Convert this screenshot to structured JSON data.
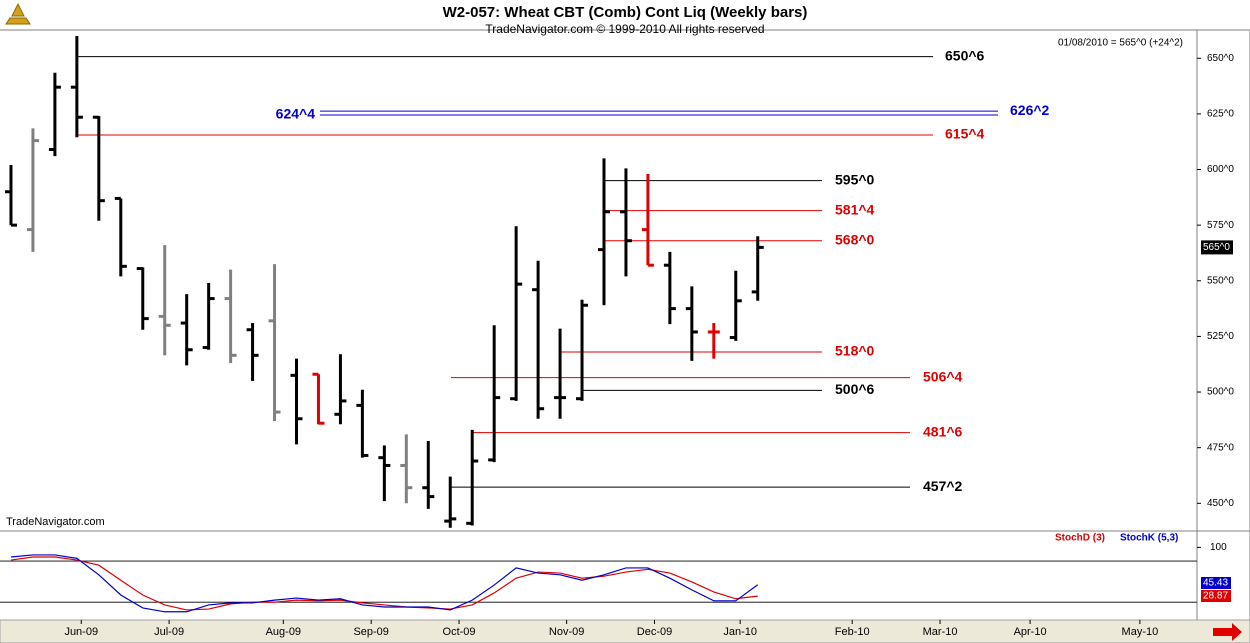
{
  "title": "W2-057:  Wheat CBT (Comb) Cont Liq  (Weekly bars)",
  "subtitle": "TradeNavigator.com © 1999-2010 All rights reserved",
  "info": "01/08/2010 = 565^0 (+24^2)",
  "watermark": "TradeNavigator.com",
  "chart_data": [
    {
      "type": "ohlc",
      "categories": [
        null,
        null,
        null,
        null,
        null,
        null,
        null,
        null,
        null,
        null,
        null,
        null,
        null,
        null,
        null,
        null,
        null,
        null,
        null,
        null,
        null,
        null,
        null,
        null,
        null,
        null,
        null,
        null,
        null,
        null,
        null,
        null,
        null,
        null,
        null
      ],
      "open": [
        590,
        573,
        609,
        637,
        623.5,
        587,
        555.5,
        534,
        531,
        520,
        542,
        528,
        532,
        507.5,
        508,
        490,
        494,
        470.5,
        467,
        457,
        442,
        441,
        469.5,
        497,
        546,
        497.5,
        497,
        564,
        581,
        573,
        557,
        537.5,
        527,
        524.5,
        545
      ],
      "high": [
        602,
        618.5,
        643.5,
        660,
        624,
        587,
        556,
        566,
        544,
        549,
        555,
        531,
        557.5,
        515,
        508,
        517,
        501,
        476,
        481,
        478,
        462,
        483,
        530,
        574.5,
        559,
        528.5,
        541.5,
        605,
        600.5,
        598,
        563,
        547.5,
        531,
        554.5,
        570
      ],
      "low": [
        575,
        563,
        606,
        614.5,
        577,
        552,
        528,
        516.5,
        512,
        519,
        513,
        505,
        487,
        476.5,
        485.5,
        485.5,
        470.5,
        451,
        450,
        447.5,
        439,
        440,
        468.5,
        496,
        488,
        488,
        496,
        539,
        552,
        557,
        530.5,
        514,
        515,
        523,
        541
      ],
      "close": [
        575,
        613,
        637,
        623.5,
        586,
        556.5,
        533,
        530,
        519,
        542,
        516.5,
        516.5,
        491,
        488,
        486,
        496,
        471.5,
        467,
        457,
        453,
        443,
        469,
        497.5,
        548.5,
        492.5,
        497.5,
        539,
        581,
        568,
        557,
        537.5,
        527,
        527,
        541,
        565
      ],
      "colors": [
        "#000000",
        "#808080",
        "#000000",
        "#000000",
        "#000000",
        "#000000",
        "#000000",
        "#808080",
        "#000000",
        "#000000",
        "#808080",
        "#000000",
        "#808080",
        "#000000",
        "#e00000",
        "#000000",
        "#000000",
        "#000000",
        "#808080",
        "#000000",
        "#000000",
        "#000000",
        "#000000",
        "#000000",
        "#000000",
        "#000000",
        "#000000",
        "#000000",
        "#000000",
        "#e00000",
        "#000000",
        "#000000",
        "#e00000",
        "#000000",
        "#000000"
      ],
      "xlim": [
        -0.5,
        54
      ],
      "xticks": [
        {
          "value": 3.2,
          "label": "Jun-09"
        },
        {
          "value": 7.2,
          "label": "Jul-09"
        },
        {
          "value": 12.4,
          "label": "Aug-09"
        },
        {
          "value": 16.4,
          "label": "Sep-09"
        },
        {
          "value": 20.4,
          "label": "Oct-09"
        },
        {
          "value": 25.3,
          "label": "Nov-09"
        },
        {
          "value": 29.3,
          "label": "Dec-09"
        },
        {
          "value": 33.2,
          "label": "Jan-10"
        },
        {
          "value": 38.3,
          "label": "Feb-10"
        },
        {
          "value": 42.3,
          "label": "Mar-10"
        },
        {
          "value": 46.4,
          "label": "Apr-10"
        },
        {
          "value": 51.4,
          "label": "May-10"
        }
      ],
      "ylim": [
        438,
        660
      ],
      "yticks": [
        {
          "value": 450,
          "label": "450^0"
        },
        {
          "value": 475,
          "label": "475^0"
        },
        {
          "value": 500,
          "label": "500^0"
        },
        {
          "value": 525,
          "label": "525^0"
        },
        {
          "value": 550,
          "label": "550^0"
        },
        {
          "value": 575,
          "label": "575^0"
        },
        {
          "value": 600,
          "label": "600^0"
        },
        {
          "value": 625,
          "label": "625^0"
        },
        {
          "value": 650,
          "label": "650^0"
        }
      ],
      "levels": [
        {
          "value": 650.75,
          "label": "650^6",
          "color": "#000000"
        },
        {
          "value": 626.25,
          "label": "626^2",
          "color": "#0000cc"
        },
        {
          "value": 624.5,
          "label": "624^4",
          "color": "#0000cc"
        },
        {
          "value": 615.5,
          "label": "615^4",
          "color": "#e00000"
        },
        {
          "value": 595,
          "label": "595^0",
          "color": "#000000"
        },
        {
          "value": 581.5,
          "label": "581^4",
          "color": "#e00000"
        },
        {
          "value": 568,
          "label": "568^0",
          "color": "#e00000"
        },
        {
          "value": 518,
          "label": "518^0",
          "color": "#e00000"
        },
        {
          "value": 506.5,
          "label": "506^4",
          "color": "#e00000"
        },
        {
          "value": 500.75,
          "label": "500^6",
          "color": "#000000"
        },
        {
          "value": 481.75,
          "label": "481^6",
          "color": "#e00000"
        },
        {
          "value": 457.25,
          "label": "457^2",
          "color": "#000000"
        }
      ],
      "last_price": {
        "value": 565,
        "label": "565^0"
      }
    },
    {
      "type": "line",
      "ylim": [
        -6,
        121
      ],
      "yticks": [
        100
      ],
      "guide_levels": [
        80,
        20
      ],
      "series": [
        {
          "name": "StochD (3)",
          "color": "#e00000",
          "values": [
            81.5,
            86,
            86,
            81.5,
            74,
            52,
            30.5,
            16,
            8.7,
            10,
            17.5,
            20,
            20,
            23,
            22,
            23,
            19,
            16,
            13,
            11.6,
            10,
            16,
            33.5,
            55,
            64,
            62.5,
            55,
            58,
            64,
            68,
            62.5,
            49.5,
            35,
            25,
            28.87
          ]
        },
        {
          "name": "StochK (5,3)",
          "color": "#0000cc",
          "values": [
            86,
            89,
            89,
            84,
            60,
            30.5,
            11.6,
            6,
            6,
            16,
            19,
            19,
            23,
            26,
            23,
            25,
            16,
            13,
            13,
            13,
            8.7,
            23,
            45,
            70,
            62.5,
            60,
            52,
            60,
            70,
            70,
            55,
            38,
            22,
            22,
            45.43
          ]
        }
      ]
    }
  ]
}
